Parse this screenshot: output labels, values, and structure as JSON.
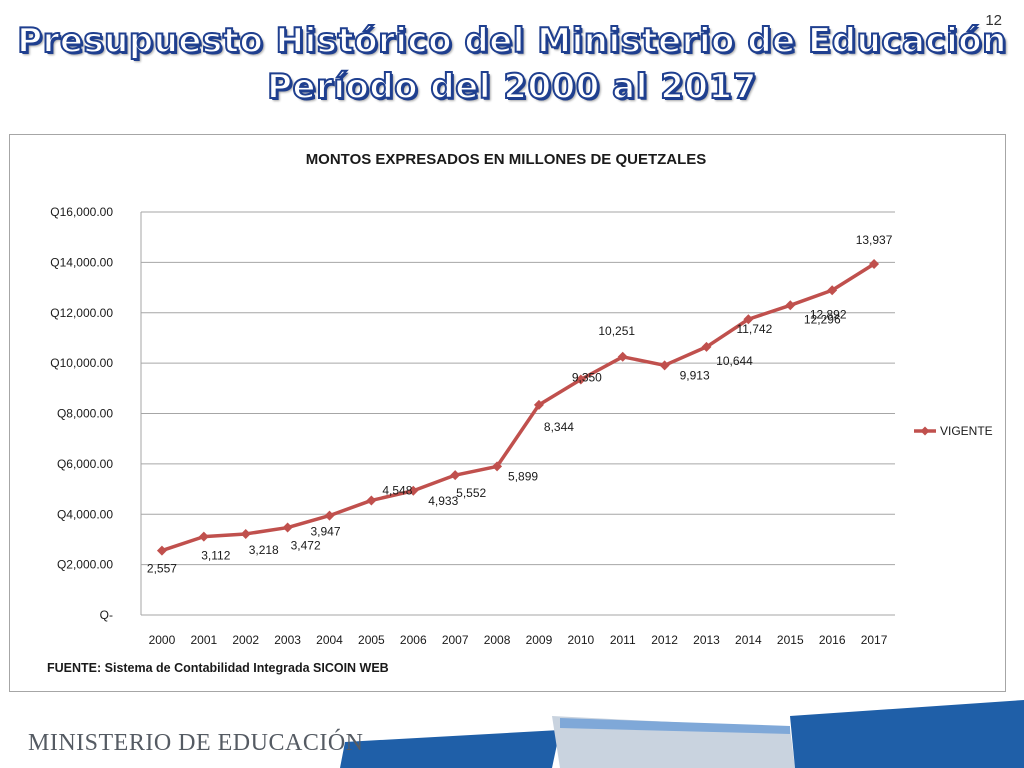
{
  "slide": {
    "number": "12",
    "title_line1": "Presupuesto Histórico del Ministerio de Educación",
    "title_line2": "Período del 2000 al 2017"
  },
  "footer": {
    "source": "FUENTE: Sistema de Contabilidad Integrada SICOIN WEB",
    "logo_text": "MINISTERIO DE EDUCACIÓN"
  },
  "colors": {
    "series_line": "#c0504d",
    "gridline": "#a6a6a6",
    "title_fill": "#ffffff",
    "title_outline": "#1f3f8f",
    "footer_blue": "#1f5fa8"
  },
  "chart_data": {
    "type": "line",
    "title": "MONTOS EXPRESADOS EN MILLONES DE QUETZALES",
    "xlabel": "",
    "ylabel": "",
    "ylim": [
      0,
      16000
    ],
    "y_ticks": [
      0,
      2000,
      4000,
      6000,
      8000,
      10000,
      12000,
      14000,
      16000
    ],
    "y_tick_labels": [
      "Q-",
      "Q2,000.00",
      "Q4,000.00",
      "Q6,000.00",
      "Q8,000.00",
      "Q10,000.00",
      "Q12,000.00",
      "Q14,000.00",
      "Q16,000.00"
    ],
    "grid": true,
    "legend_position": "right",
    "categories": [
      "2000",
      "2001",
      "2002",
      "2003",
      "2004",
      "2005",
      "2006",
      "2007",
      "2008",
      "2009",
      "2010",
      "2011",
      "2012",
      "2013",
      "2014",
      "2015",
      "2016",
      "2017"
    ],
    "series": [
      {
        "name": "VIGENTE",
        "values": [
          2557,
          3112,
          3218,
          3472,
          3947,
          4548,
          4933,
          5552,
          5899,
          8344,
          9350,
          10251,
          9913,
          10644,
          11742,
          12296,
          12892,
          13937
        ],
        "data_labels": [
          "2,557",
          "3,112",
          "3,218",
          "3,472",
          "3,947",
          "4,548",
          "4,933",
          "5,552",
          "5,899",
          "8,344",
          "9,350",
          "10,251",
          "9,913",
          "10,644",
          "11,742",
          "12,296",
          "12,892",
          "13,937"
        ]
      }
    ]
  }
}
